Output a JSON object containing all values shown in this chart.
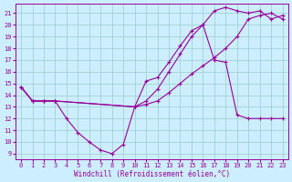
{
  "bg_color": "#cceeff",
  "grid_color": "#99cccc",
  "line_color": "#990099",
  "xlabel": "Windchill (Refroidissement éolien,°C)",
  "xlim": [
    -0.5,
    23.5
  ],
  "ylim": [
    8.5,
    21.8
  ],
  "yticks": [
    9,
    10,
    11,
    12,
    13,
    14,
    15,
    16,
    17,
    18,
    19,
    20,
    21
  ],
  "xticks": [
    0,
    1,
    2,
    3,
    4,
    5,
    6,
    7,
    8,
    9,
    10,
    11,
    12,
    13,
    14,
    15,
    16,
    17,
    18,
    19,
    20,
    21,
    22,
    23
  ],
  "series": [
    {
      "x": [
        0,
        1,
        2,
        3,
        4,
        5,
        6,
        7,
        8,
        9,
        10,
        11,
        12,
        13,
        14,
        15,
        16,
        17,
        18,
        19,
        20,
        21,
        22,
        23
      ],
      "y": [
        14.7,
        13.5,
        13.5,
        13.5,
        12.0,
        10.8,
        10.0,
        9.3,
        9.0,
        9.8,
        13.0,
        15.2,
        15.5,
        16.8,
        18.2,
        19.5,
        20.0,
        17.0,
        16.8,
        12.3,
        12.0,
        12.0,
        12.0,
        12.0
      ]
    },
    {
      "x": [
        0,
        1,
        2,
        3,
        10,
        11,
        12,
        13,
        14,
        15,
        16,
        17,
        18,
        19,
        20,
        21,
        22,
        23
      ],
      "y": [
        14.7,
        13.5,
        13.5,
        13.5,
        13.0,
        13.2,
        13.5,
        14.2,
        15.0,
        15.8,
        16.5,
        17.2,
        18.0,
        19.0,
        20.5,
        20.8,
        21.0,
        20.5
      ]
    },
    {
      "x": [
        0,
        1,
        2,
        3,
        10,
        11,
        12,
        13,
        14,
        15,
        16,
        17,
        18,
        19,
        20,
        21,
        22,
        23
      ],
      "y": [
        14.7,
        13.5,
        13.5,
        13.5,
        13.0,
        13.5,
        14.5,
        16.0,
        17.5,
        19.0,
        20.0,
        21.2,
        21.5,
        21.2,
        21.0,
        21.2,
        20.5,
        20.8
      ]
    }
  ]
}
